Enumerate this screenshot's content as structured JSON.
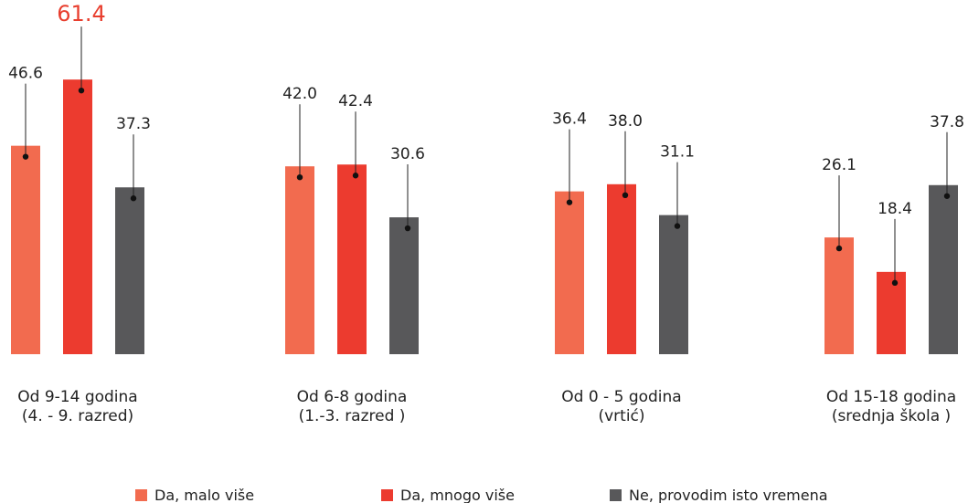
{
  "chart_data": {
    "type": "bar",
    "categories": [
      {
        "line1": "Od 9-14 godina",
        "line2": "(4. - 9. razred)"
      },
      {
        "line1": "Od 6-8 godina",
        "line2": "(1.-3. razred )"
      },
      {
        "line1": "Od 0 - 5 godina",
        "line2": "(vrtić)"
      },
      {
        "line1": "Od 15-18 godina",
        "line2": "(srednja škola )"
      }
    ],
    "series": [
      {
        "name": "Da, malo više",
        "color": "#f26b4f",
        "values": [
          46.6,
          42.0,
          36.4,
          26.1
        ],
        "labels": [
          "46.6",
          "42.0",
          "36.4",
          "26.1"
        ]
      },
      {
        "name": "Da, mnogo više",
        "color": "#ec3b2f",
        "values": [
          61.4,
          42.4,
          38.0,
          18.4
        ],
        "labels": [
          "61.4",
          "42.4",
          "38.0",
          "18.4"
        ]
      },
      {
        "name": "Ne, provodim isto vremena",
        "color": "#58585a",
        "values": [
          37.3,
          30.6,
          31.1,
          37.8
        ],
        "labels": [
          "37.3",
          "30.6",
          "31.1",
          "37.8"
        ]
      }
    ],
    "highlight": {
      "series": 1,
      "category": 0,
      "color": "#e83e2e"
    },
    "ylim": [
      0,
      62
    ],
    "grid": false,
    "legend": "bottom"
  }
}
